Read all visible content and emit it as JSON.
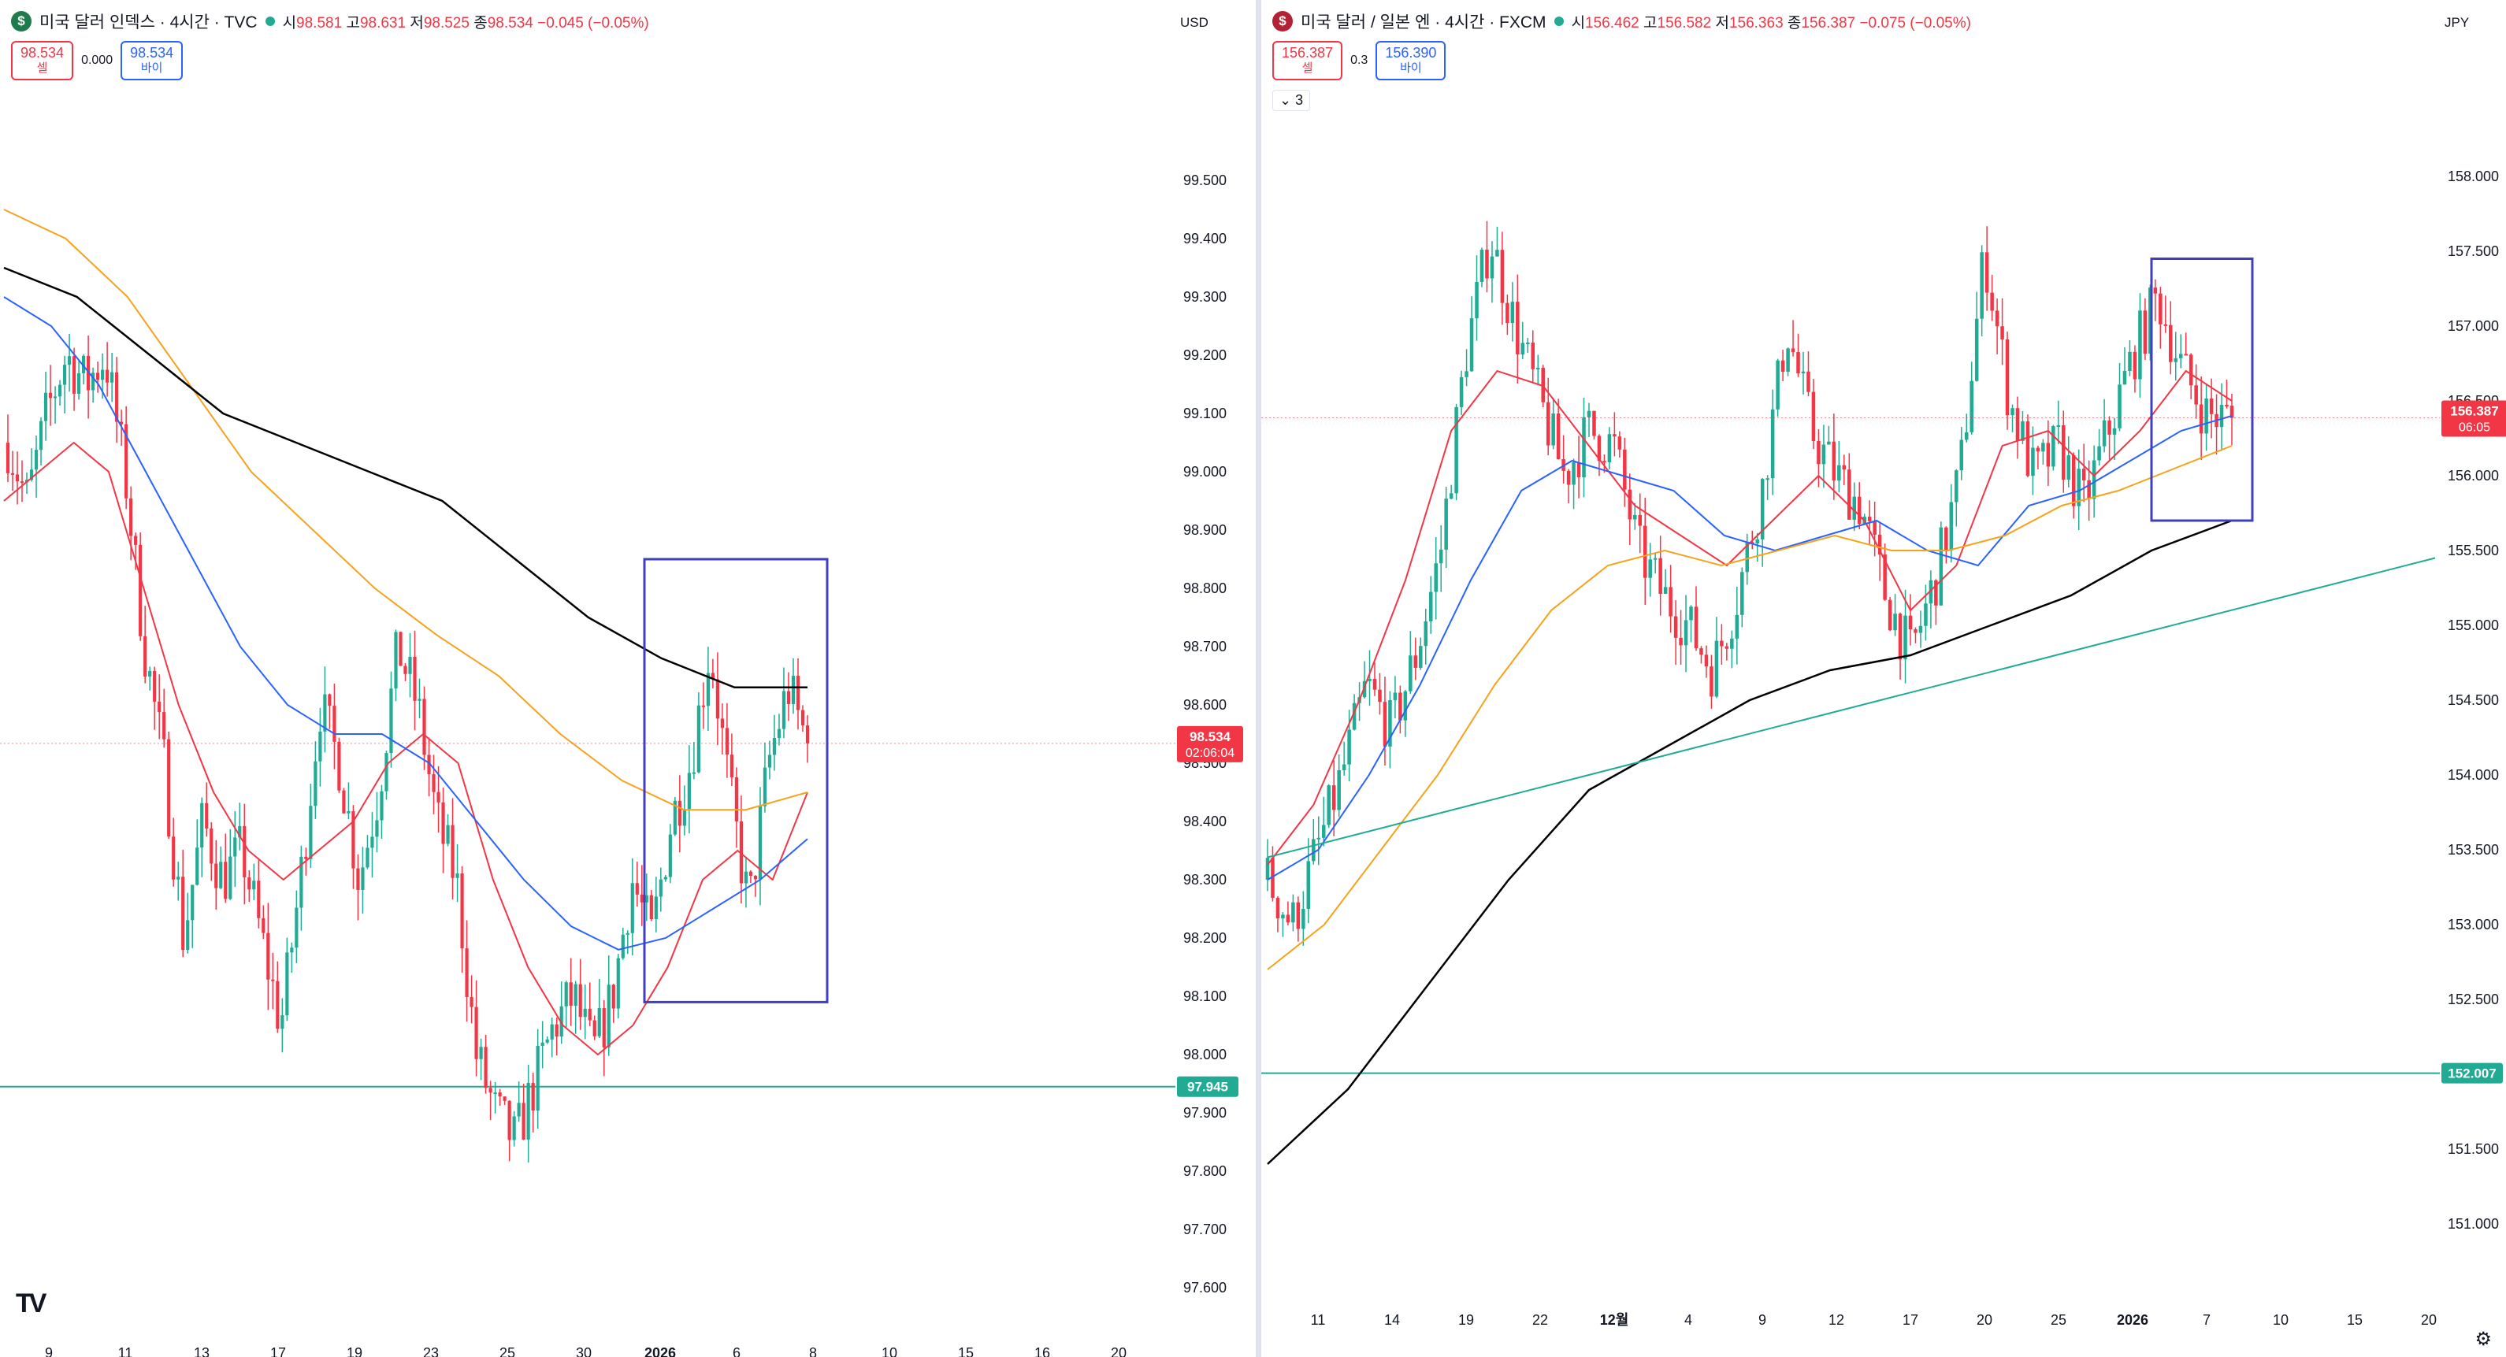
{
  "left": {
    "title": "미국 달러 인덱스 · 4시간 · TVC",
    "icon_letter": "$",
    "icon_color": "#1e7b4c",
    "ohlc": [
      {
        "label": "시",
        "value": "98.581"
      },
      {
        "label": "고",
        "value": "98.631"
      },
      {
        "label": "저",
        "value": "98.525"
      },
      {
        "label": "종",
        "value": "98.534"
      }
    ],
    "change": "−0.045 (−0.05%)",
    "sell_price": "98.534",
    "sell_label": "셀",
    "spread": "0.000",
    "buy_price": "98.534",
    "buy_label": "바이",
    "currency": "USD"
  },
  "right": {
    "title": "미국 달러 / 일본 엔 · 4시간 · FXCM",
    "icon_letter": "🇺",
    "icon_color": "#b22234",
    "ohlc": [
      {
        "label": "시",
        "value": "156.462"
      },
      {
        "label": "고",
        "value": "156.582"
      },
      {
        "label": "저",
        "value": "156.363"
      },
      {
        "label": "종",
        "value": "156.387"
      }
    ],
    "change": "−0.075 (−0.05%)",
    "sell_price": "156.387",
    "sell_label": "셀",
    "spread": "0.3",
    "buy_price": "156.390",
    "buy_label": "바이",
    "collapse_label": "3",
    "currency": "JPY"
  },
  "colors": {
    "up": "#22ab94",
    "down": "#f23645",
    "ma_fast": "#f23645",
    "ma_mid": "#2962ff",
    "ma_slow": "#f7a21b",
    "ma_long": "#000000",
    "trendline": "#22ab94",
    "box": "#3f3fbf"
  },
  "chart_data": [
    {
      "type": "candlestick",
      "title": "미국 달러 인덱스 · 4시간 · TVC",
      "ylim": [
        97.55,
        99.65
      ],
      "yticks": [
        "99.500",
        "99.400",
        "99.300",
        "99.200",
        "99.100",
        "99.000",
        "98.900",
        "98.800",
        "98.700",
        "98.600",
        "98.500",
        "98.400",
        "98.300",
        "98.200",
        "98.100",
        "98.000",
        "97.900",
        "97.800",
        "97.700",
        "97.600"
      ],
      "xticks": [
        "9",
        "11",
        "13",
        "17",
        "19",
        "23",
        "25",
        "30",
        "2026",
        "6",
        "8",
        "10",
        "15",
        "16",
        "20"
      ],
      "last_price": {
        "value": 98.534,
        "label": "98.534",
        "countdown": "02:06:04"
      },
      "horizontal_line": {
        "value": 97.945,
        "label": "97.945"
      },
      "highlight_box": {
        "x_range": [
          "2026",
          "8"
        ],
        "y_range": [
          98.09,
          98.85
        ]
      },
      "approx_close_path": [
        99.05,
        98.95,
        99.1,
        99.2,
        99.15,
        99.2,
        99.0,
        98.7,
        98.5,
        98.2,
        98.4,
        98.3,
        98.35,
        98.2,
        98.05,
        98.3,
        98.6,
        98.5,
        98.3,
        98.45,
        98.7,
        98.6,
        98.4,
        98.3,
        98.0,
        97.9,
        97.85,
        97.95,
        98.05,
        98.1,
        98.0,
        98.1,
        98.3,
        98.2,
        98.4,
        98.5,
        98.7,
        98.45,
        98.25,
        98.5,
        98.63,
        98.534
      ],
      "moving_averages": [
        {
          "color": "#f23645",
          "values": [
            98.95,
            99.0,
            99.05,
            99.0,
            98.8,
            98.6,
            98.45,
            98.35,
            98.3,
            98.35,
            98.4,
            98.5,
            98.55,
            98.5,
            98.3,
            98.15,
            98.05,
            98.0,
            98.05,
            98.15,
            98.3,
            98.35,
            98.3,
            98.45
          ]
        },
        {
          "color": "#2962ff",
          "values": [
            99.3,
            99.25,
            99.15,
            99.0,
            98.85,
            98.7,
            98.6,
            98.55,
            98.55,
            98.5,
            98.4,
            98.3,
            98.22,
            98.18,
            98.2,
            98.25,
            98.3,
            98.37
          ]
        },
        {
          "color": "#f7a21b",
          "values": [
            99.45,
            99.4,
            99.3,
            99.15,
            99.0,
            98.9,
            98.8,
            98.72,
            98.65,
            98.55,
            98.47,
            98.42,
            98.42,
            98.45
          ]
        },
        {
          "color": "#000000",
          "values": [
            99.35,
            99.3,
            99.2,
            99.1,
            99.05,
            99.0,
            98.95,
            98.85,
            98.75,
            98.68,
            98.63,
            98.63
          ]
        }
      ]
    },
    {
      "type": "candlestick",
      "title": "미국 달러 / 일본 엔 · 4시간 · FXCM",
      "ylim": [
        150.6,
        158.4
      ],
      "yticks": [
        "158.000",
        "157.500",
        "157.000",
        "156.500",
        "156.000",
        "155.500",
        "155.000",
        "154.500",
        "154.000",
        "153.500",
        "153.000",
        "152.500",
        "152.000",
        "151.500",
        "151.000"
      ],
      "xticks": [
        "11",
        "14",
        "19",
        "22",
        "12월",
        "4",
        "9",
        "12",
        "17",
        "20",
        "25",
        "2026",
        "7",
        "10",
        "15",
        "20"
      ],
      "last_price": {
        "value": 156.387,
        "label": "156.387",
        "countdown": "06:05"
      },
      "horizontal_line": {
        "value": 152.007,
        "label": "152.007"
      },
      "highlight_box": {
        "x_range": [
          "2026",
          "7"
        ],
        "y_range": [
          155.7,
          157.45
        ]
      },
      "approx_close_path": [
        153.3,
        153.0,
        153.5,
        154.0,
        154.6,
        154.3,
        154.8,
        155.5,
        156.8,
        157.6,
        157.0,
        156.5,
        156.0,
        156.3,
        156.2,
        155.5,
        155.2,
        155.0,
        154.7,
        155.2,
        155.9,
        157.0,
        156.3,
        156.0,
        155.8,
        155.2,
        154.8,
        155.3,
        156.0,
        157.5,
        156.5,
        156.0,
        156.2,
        155.8,
        156.3,
        156.8,
        157.2,
        156.7,
        156.4,
        156.387
      ],
      "moving_averages": [
        {
          "color": "#f23645",
          "values": [
            153.4,
            153.8,
            154.5,
            155.3,
            156.3,
            156.7,
            156.6,
            156.2,
            155.8,
            155.6,
            155.4,
            155.7,
            156.0,
            155.7,
            155.1,
            155.4,
            156.2,
            156.3,
            156.0,
            156.3,
            156.7,
            156.5
          ]
        },
        {
          "color": "#2962ff",
          "values": [
            153.3,
            153.5,
            154.0,
            154.6,
            155.3,
            155.9,
            156.1,
            156.0,
            155.9,
            155.6,
            155.5,
            155.6,
            155.7,
            155.5,
            155.4,
            155.8,
            155.9,
            156.1,
            156.3,
            156.4
          ]
        },
        {
          "color": "#f7a21b",
          "values": [
            152.7,
            153.0,
            153.5,
            154.0,
            154.6,
            155.1,
            155.4,
            155.5,
            155.4,
            155.5,
            155.6,
            155.5,
            155.5,
            155.6,
            155.8,
            155.9,
            156.05,
            156.2
          ]
        },
        {
          "color": "#000000",
          "values": [
            151.4,
            151.9,
            152.6,
            153.3,
            153.9,
            154.2,
            154.5,
            154.7,
            154.8,
            155.0,
            155.2,
            155.5,
            155.7
          ]
        }
      ]
    }
  ]
}
